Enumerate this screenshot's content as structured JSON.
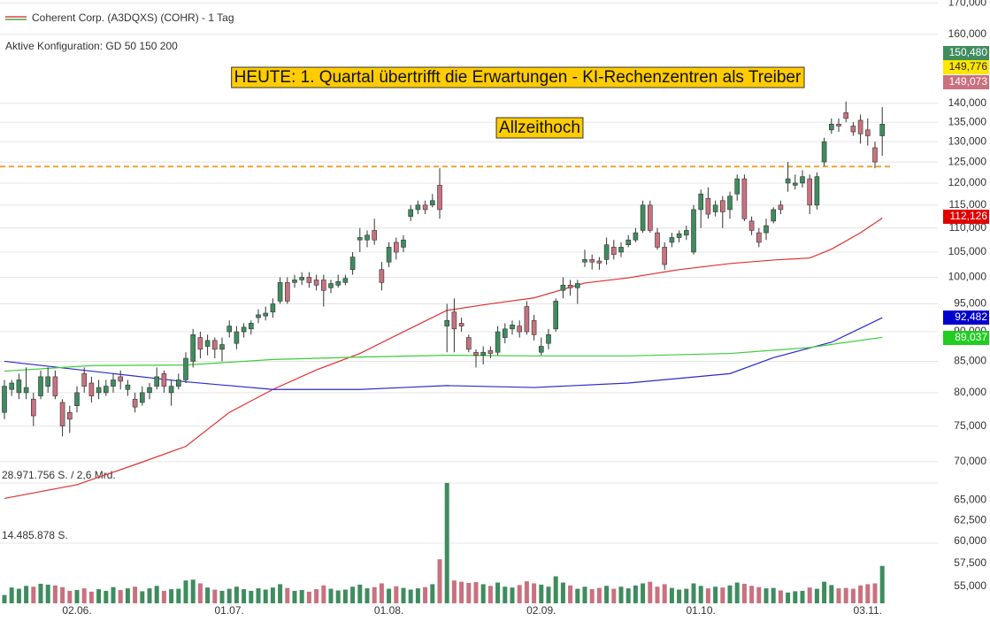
{
  "legend": {
    "title": "Coherent Corp. (A3DQXS) (COHR) - 1 Tag",
    "config": "Aktive Konfiguration: GD 50 150 200"
  },
  "chart_data": {
    "type": "candlestick",
    "log_scale": true,
    "grid": true,
    "ylim": [
      52500,
      171000
    ],
    "yticks": [
      {
        "value": 55000,
        "label": "55,000"
      },
      {
        "value": 57500,
        "label": "57,500"
      },
      {
        "value": 60000,
        "label": "60,000"
      },
      {
        "value": 62500,
        "label": "62,500"
      },
      {
        "value": 65000,
        "label": "65,000"
      },
      {
        "value": 70000,
        "label": "70,000"
      },
      {
        "value": 75000,
        "label": "75,000"
      },
      {
        "value": 80000,
        "label": "80,000"
      },
      {
        "value": 85000,
        "label": "85,000"
      },
      {
        "value": 90000,
        "label": "90,000"
      },
      {
        "value": 95000,
        "label": "95,000"
      },
      {
        "value": 100000,
        "label": "100,000"
      },
      {
        "value": 105000,
        "label": "105,000"
      },
      {
        "value": 110000,
        "label": "110,000"
      },
      {
        "value": 115000,
        "label": "115,000"
      },
      {
        "value": 120000,
        "label": "120,000"
      },
      {
        "value": 125000,
        "label": "125,000"
      },
      {
        "value": 130000,
        "label": "130,000"
      },
      {
        "value": 135000,
        "label": "135,000"
      },
      {
        "value": 140000,
        "label": "140,000"
      },
      {
        "value": 160000,
        "label": "160,000"
      },
      {
        "value": 170000,
        "label": "170,000"
      }
    ],
    "xticks": [
      {
        "value": 10,
        "label": "02.06."
      },
      {
        "value": 31,
        "label": "01.07."
      },
      {
        "value": 53,
        "label": "01.08."
      },
      {
        "value": 74,
        "label": "02.09."
      },
      {
        "value": 96,
        "label": "01.10."
      },
      {
        "value": 119,
        "label": "03.11."
      }
    ],
    "up_color": "#3f8c5f",
    "down_color": "#c9717f",
    "candles": [
      [
        77000,
        82000,
        76000,
        81000
      ],
      [
        80500,
        82000,
        79500,
        81500
      ],
      [
        80000,
        83000,
        79000,
        82000
      ],
      [
        80000,
        84000,
        79000,
        80800
      ],
      [
        79000,
        80000,
        75000,
        76500
      ],
      [
        79500,
        83500,
        79000,
        82500
      ],
      [
        81000,
        84000,
        80000,
        82500
      ],
      [
        82500,
        83500,
        79000,
        79500
      ],
      [
        78500,
        79000,
        73500,
        75000
      ],
      [
        77000,
        78000,
        74000,
        76000
      ],
      [
        78000,
        81000,
        77000,
        80000
      ],
      [
        83000,
        84000,
        80000,
        81000
      ],
      [
        81500,
        82500,
        78500,
        79500
      ],
      [
        80000,
        82000,
        79000,
        80800
      ],
      [
        80000,
        82000,
        79500,
        81000
      ],
      [
        81000,
        83000,
        80000,
        82000
      ],
      [
        82500,
        83500,
        80500,
        81800
      ],
      [
        80500,
        82000,
        79500,
        81200
      ],
      [
        79000,
        80000,
        77000,
        77800
      ],
      [
        78500,
        81000,
        78000,
        80000
      ],
      [
        80000,
        81500,
        79000,
        80800
      ],
      [
        81000,
        84000,
        80500,
        82500
      ],
      [
        83000,
        83500,
        80000,
        81000
      ],
      [
        80000,
        82000,
        78000,
        81000
      ],
      [
        81000,
        83000,
        80500,
        82000
      ],
      [
        82000,
        86500,
        81500,
        85500
      ],
      [
        85000,
        90500,
        84000,
        89500
      ],
      [
        89000,
        90000,
        85500,
        87000
      ],
      [
        87500,
        89500,
        86000,
        88500
      ],
      [
        88500,
        89000,
        85500,
        87000
      ],
      [
        87000,
        89000,
        85000,
        87800
      ],
      [
        90000,
        92000,
        89000,
        91000
      ],
      [
        88000,
        91000,
        87000,
        90000
      ],
      [
        90000,
        91500,
        89000,
        90800
      ],
      [
        90500,
        92000,
        89500,
        91500
      ],
      [
        92500,
        94000,
        91500,
        93000
      ],
      [
        92800,
        94500,
        92000,
        93300
      ],
      [
        93500,
        96000,
        92500,
        95000
      ],
      [
        95500,
        100000,
        95000,
        99000
      ],
      [
        99000,
        100000,
        95000,
        95500
      ],
      [
        99000,
        100500,
        98000,
        99500
      ],
      [
        99500,
        101000,
        98500,
        100000
      ],
      [
        100000,
        101000,
        98000,
        99000
      ],
      [
        99500,
        100500,
        97500,
        98500
      ],
      [
        99500,
        100500,
        94500,
        97500
      ],
      [
        98000,
        99500,
        97000,
        98800
      ],
      [
        98500,
        100500,
        98000,
        99200
      ],
      [
        99000,
        100500,
        98500,
        99800
      ],
      [
        101500,
        105000,
        100500,
        104000
      ],
      [
        107500,
        110000,
        105000,
        108000
      ],
      [
        107500,
        109500,
        106000,
        108500
      ],
      [
        109500,
        112000,
        106500,
        107500
      ],
      [
        101500,
        103000,
        97500,
        99000
      ],
      [
        103000,
        107000,
        102000,
        106000
      ],
      [
        107000,
        108000,
        103500,
        105000
      ],
      [
        106000,
        108500,
        105000,
        107500
      ],
      [
        112500,
        115000,
        111500,
        114000
      ],
      [
        114000,
        116000,
        113000,
        115000
      ],
      [
        115000,
        116000,
        113000,
        114000
      ],
      [
        115000,
        117500,
        114500,
        116000
      ],
      [
        119500,
        123500,
        112000,
        114000
      ],
      [
        91000,
        95000,
        86500,
        92000
      ],
      [
        93500,
        96000,
        86500,
        90500
      ],
      [
        91500,
        92500,
        90000,
        91000
      ],
      [
        89000,
        89500,
        86500,
        87000
      ],
      [
        86500,
        87000,
        84000,
        86000
      ],
      [
        86000,
        87500,
        84500,
        86500
      ],
      [
        86800,
        87500,
        85500,
        86300
      ],
      [
        86500,
        91000,
        86000,
        90000
      ],
      [
        89000,
        91500,
        88000,
        90500
      ],
      [
        90500,
        92000,
        89500,
        91200
      ],
      [
        91000,
        92000,
        89000,
        90000
      ],
      [
        94500,
        95500,
        89500,
        90000
      ],
      [
        92000,
        93000,
        88500,
        89500
      ],
      [
        86500,
        89000,
        86000,
        87500
      ],
      [
        88000,
        90500,
        87000,
        89500
      ],
      [
        90500,
        96000,
        90000,
        95500
      ],
      [
        97500,
        100000,
        96000,
        98500
      ],
      [
        98500,
        99500,
        96500,
        98000
      ],
      [
        98000,
        99500,
        95000,
        98800
      ],
      [
        103000,
        105500,
        102000,
        103500
      ],
      [
        103500,
        104500,
        101500,
        103000
      ],
      [
        103200,
        104000,
        101500,
        102800
      ],
      [
        103500,
        108000,
        102500,
        106500
      ],
      [
        106000,
        107500,
        103500,
        104500
      ],
      [
        105000,
        107000,
        104000,
        106000
      ],
      [
        106500,
        108500,
        106000,
        107500
      ],
      [
        107500,
        110000,
        107000,
        109000
      ],
      [
        109500,
        116000,
        109000,
        115000
      ],
      [
        115000,
        116000,
        109000,
        109500
      ],
      [
        109000,
        110000,
        105500,
        106000
      ],
      [
        106000,
        107000,
        101500,
        102500
      ],
      [
        107000,
        109000,
        106000,
        108000
      ],
      [
        108000,
        109500,
        107000,
        108800
      ],
      [
        108500,
        110500,
        107500,
        109500
      ],
      [
        105000,
        115000,
        104500,
        114000
      ],
      [
        114000,
        118500,
        110000,
        117500
      ],
      [
        116500,
        119000,
        112000,
        113000
      ],
      [
        113500,
        116000,
        112500,
        115000
      ],
      [
        116000,
        117000,
        110000,
        113500
      ],
      [
        114000,
        118000,
        112000,
        117000
      ],
      [
        117500,
        122000,
        116000,
        121000
      ],
      [
        121000,
        122000,
        111500,
        112000
      ],
      [
        111500,
        112500,
        108500,
        109500
      ],
      [
        109000,
        110000,
        106000,
        107000
      ],
      [
        109000,
        112000,
        107500,
        110500
      ],
      [
        111500,
        114500,
        111000,
        114000
      ],
      [
        115000,
        116000,
        113000,
        114000
      ],
      [
        120000,
        125000,
        118000,
        121000
      ],
      [
        119500,
        122000,
        118500,
        120000
      ],
      [
        120000,
        123000,
        119000,
        121500
      ],
      [
        121000,
        122000,
        113000,
        115000
      ],
      [
        115000,
        122500,
        114000,
        121500
      ],
      [
        125000,
        131000,
        124000,
        130000
      ],
      [
        133000,
        136000,
        132000,
        134500
      ],
      [
        134500,
        136000,
        132500,
        134000
      ],
      [
        137500,
        140500,
        135000,
        136000
      ],
      [
        134000,
        135000,
        131500,
        132500
      ],
      [
        135500,
        137000,
        129500,
        132000
      ],
      [
        133000,
        136000,
        129000,
        131500
      ],
      [
        128500,
        130000,
        123500,
        125000
      ],
      [
        131500,
        139000,
        126500,
        134500
      ]
    ],
    "moving_averages": [
      {
        "color": "#e03030",
        "label": "112,126",
        "label_color": "#e00000",
        "x": [
          0,
          10,
          18,
          25,
          31,
          37,
          43,
          49,
          55,
          61,
          67,
          73,
          80,
          86,
          93,
          100,
          106,
          111,
          114,
          118,
          121
        ],
        "values": [
          65200,
          66950,
          69600,
          72100,
          77000,
          80500,
          83600,
          86300,
          90000,
          93800,
          95000,
          96100,
          98900,
          99900,
          101500,
          102700,
          103400,
          103800,
          105600,
          109000,
          112126
        ]
      },
      {
        "color": "#2a2ad0",
        "label": "92,482",
        "label_color": "#0000cc",
        "x": [
          0,
          12,
          25,
          37,
          49,
          55,
          61,
          73,
          86,
          100,
          106,
          114,
          121
        ],
        "values": [
          85000,
          83400,
          81700,
          80500,
          80500,
          80800,
          81100,
          80800,
          81500,
          83000,
          85600,
          88200,
          92482
        ]
      },
      {
        "color": "#3ccc3c",
        "label": "89,037",
        "label_color": "#22cc22",
        "x": [
          0,
          12,
          25,
          37,
          49,
          61,
          73,
          86,
          100,
          111,
          121
        ],
        "values": [
          83400,
          84300,
          84400,
          85300,
          85700,
          86000,
          85900,
          85900,
          86300,
          87300,
          89037
        ]
      }
    ],
    "reference_line": {
      "value": 123900,
      "color": "#f5a030"
    },
    "annotations": [
      "HEUTE: 1. Quartal übertrifft die Erwartungen - KI-Rechenzentren als Treiber",
      "Allzeithoch"
    ],
    "price_labels": [
      {
        "label": "150,480",
        "color": "#3f8c5f"
      },
      {
        "label": "149,776",
        "color": "#ffe600"
      },
      {
        "label": "149,073",
        "color": "#c9717f"
      }
    ],
    "volume": {
      "ylim": [
        0,
        28971756
      ],
      "yticks": [
        {
          "value": 14485878,
          "label": "14.485.878 S."
        },
        {
          "value": 28971756,
          "label": "28.971.756 S. / 2,6 Mrd."
        }
      ],
      "values": [
        2000000,
        3800000,
        3500000,
        4200000,
        4000000,
        4700000,
        4500000,
        4300000,
        3900000,
        3000000,
        3200000,
        3600000,
        2800000,
        3400000,
        3000000,
        3900000,
        3200000,
        3600000,
        4000000,
        2900000,
        3600000,
        4200000,
        3000000,
        3400000,
        3500000,
        5500000,
        5700000,
        4800000,
        3800000,
        3300000,
        3000000,
        3500000,
        4000000,
        3400000,
        3000000,
        3600000,
        3300000,
        3800000,
        4600000,
        3700000,
        3000000,
        3200000,
        2800000,
        3400000,
        4300000,
        3500000,
        3100000,
        3300000,
        4000000,
        4500000,
        3600000,
        3900000,
        4800000,
        3500000,
        4100000,
        3700000,
        3300000,
        3600000,
        3900000,
        4600000,
        10600000,
        29000000,
        5500000,
        5200000,
        4900000,
        5100000,
        4600000,
        4200000,
        5000000,
        4000000,
        3800000,
        4400000,
        5300000,
        4800000,
        4500000,
        4000000,
        6500000,
        5000000,
        4300000,
        3500000,
        4000000,
        3400000,
        3700000,
        4200000,
        3500000,
        4000000,
        3600000,
        4300000,
        4800000,
        5200000,
        4000000,
        4600000,
        3700000,
        3300000,
        3500000,
        4800000,
        4200000,
        3600000,
        4000000,
        3800000,
        4300000,
        5000000,
        4700000,
        4200000,
        3900000,
        3600000,
        3700000,
        3100000,
        2600000,
        2900000,
        3000000,
        3800000,
        3500000,
        5200000,
        4400000,
        3600000,
        3700000,
        3500000,
        4300000,
        4600000,
        4800000,
        9000000
      ]
    }
  }
}
